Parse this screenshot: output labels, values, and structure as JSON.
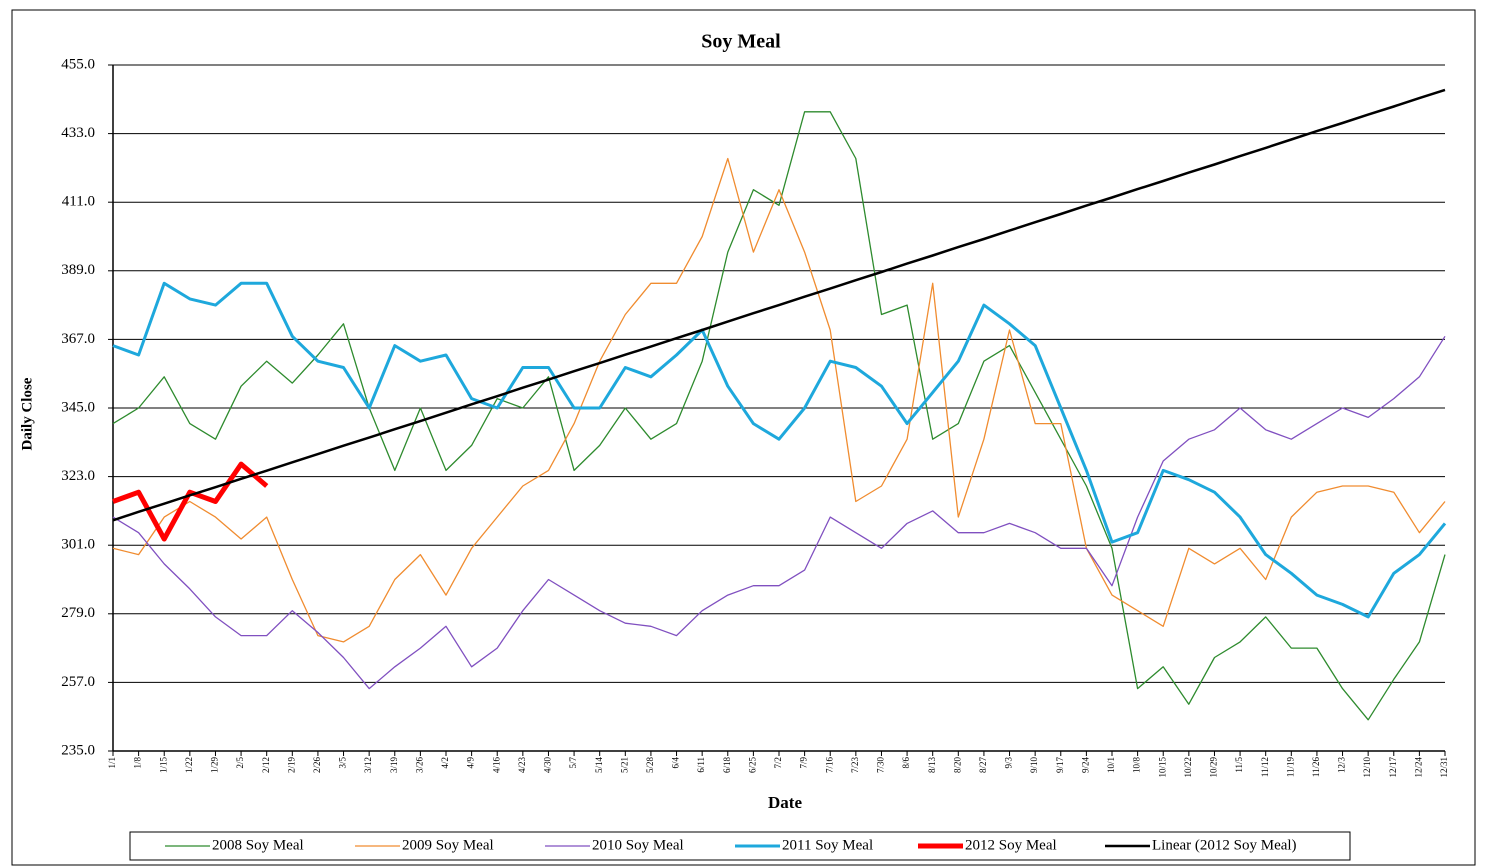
{
  "chart_data": {
    "type": "line",
    "title": "Soy Meal",
    "x_label": "Date",
    "y_label": "Daily Close",
    "categories": [
      "1/1",
      "1/8",
      "1/15",
      "1/22",
      "1/29",
      "2/5",
      "2/12",
      "2/19",
      "2/26",
      "3/5",
      "3/12",
      "3/19",
      "3/26",
      "4/2",
      "4/9",
      "4/16",
      "4/23",
      "4/30",
      "5/7",
      "5/14",
      "5/21",
      "5/28",
      "6/4",
      "6/11",
      "6/18",
      "6/25",
      "7/2",
      "7/9",
      "7/16",
      "7/23",
      "7/30",
      "8/6",
      "8/13",
      "8/20",
      "8/27",
      "9/3",
      "9/10",
      "9/17",
      "9/24",
      "10/1",
      "10/8",
      "10/15",
      "10/22",
      "10/29",
      "11/5",
      "11/12",
      "11/19",
      "11/26",
      "12/3",
      "12/10",
      "12/17",
      "12/24",
      "12/31"
    ],
    "ylim": [
      235,
      455
    ],
    "yticks": [
      {
        "value": 235,
        "label": "235.0"
      },
      {
        "value": 257,
        "label": "257.0"
      },
      {
        "value": 279,
        "label": "279.0"
      },
      {
        "value": 301,
        "label": "301.0"
      },
      {
        "value": 323,
        "label": "323.0"
      },
      {
        "value": 345,
        "label": "345.0"
      },
      {
        "value": 367,
        "label": "367.0"
      },
      {
        "value": 389,
        "label": "389.0"
      },
      {
        "value": 411,
        "label": "411.0"
      },
      {
        "value": 433,
        "label": "433.0"
      },
      {
        "value": 455,
        "label": "455.0"
      }
    ],
    "grid": true,
    "legend": "bottom",
    "series": [
      {
        "name": "2008 Soy Meal",
        "color": "#2e8b2e",
        "line_width": 1.3,
        "values": [
          340,
          345,
          355,
          340,
          335,
          352,
          360,
          353,
          362,
          372,
          345,
          325,
          345,
          325,
          333,
          348,
          345,
          355,
          325,
          333,
          345,
          335,
          340,
          360,
          395,
          415,
          410,
          440,
          440,
          425,
          375,
          378,
          335,
          340,
          360,
          365,
          350,
          335,
          320,
          300,
          255,
          262,
          250,
          265,
          270,
          278,
          268,
          268,
          255,
          245,
          258,
          270,
          298
        ]
      },
      {
        "name": "2009 Soy Meal",
        "color": "#f08c30",
        "line_width": 1.3,
        "values": [
          300,
          298,
          310,
          315,
          310,
          303,
          310,
          290,
          272,
          270,
          275,
          290,
          298,
          285,
          300,
          310,
          320,
          325,
          340,
          360,
          375,
          385,
          385,
          400,
          425,
          395,
          415,
          395,
          370,
          315,
          320,
          335,
          385,
          310,
          335,
          370,
          340,
          340,
          300,
          285,
          280,
          275,
          300,
          295,
          300,
          290,
          310,
          318,
          320,
          320,
          318,
          305,
          315
        ]
      },
      {
        "name": "2010 Soy Meal",
        "color": "#8050c0",
        "line_width": 1.3,
        "values": [
          310,
          305,
          295,
          287,
          278,
          272,
          272,
          280,
          273,
          265,
          255,
          262,
          268,
          275,
          262,
          268,
          280,
          290,
          285,
          280,
          276,
          275,
          272,
          280,
          285,
          288,
          288,
          293,
          310,
          305,
          300,
          308,
          312,
          305,
          305,
          308,
          305,
          300,
          300,
          288,
          310,
          328,
          335,
          338,
          345,
          338,
          335,
          340,
          345,
          342,
          348,
          355,
          368
        ]
      },
      {
        "name": "2011 Soy Meal",
        "color": "#1ea8dc",
        "line_width": 3,
        "values": [
          365,
          362,
          385,
          380,
          378,
          385,
          385,
          368,
          360,
          358,
          345,
          365,
          360,
          362,
          348,
          345,
          358,
          358,
          345,
          345,
          358,
          355,
          362,
          370,
          352,
          340,
          335,
          345,
          360,
          358,
          352,
          340,
          350,
          360,
          378,
          372,
          365,
          345,
          325,
          302,
          305,
          325,
          322,
          318,
          310,
          298,
          292,
          285,
          282,
          278,
          292,
          298,
          308
        ]
      },
      {
        "name": "2012 Soy Meal",
        "color": "#ff0000",
        "line_width": 5,
        "values": [
          315,
          318,
          303,
          318,
          315,
          327,
          320,
          null,
          null,
          null,
          null,
          null,
          null,
          null,
          null,
          null,
          null,
          null,
          null,
          null,
          null,
          null,
          null,
          null,
          null,
          null,
          null,
          null,
          null,
          null,
          null,
          null,
          null,
          null,
          null,
          null,
          null,
          null,
          null,
          null,
          null,
          null,
          null,
          null,
          null,
          null,
          null,
          null,
          null,
          null,
          null,
          null,
          null
        ]
      },
      {
        "name": "Linear (2012 Soy Meal)",
        "color": "#000000",
        "line_width": 2.5,
        "values": [
          309.0,
          311.7,
          314.3,
          317.0,
          319.6,
          322.3,
          324.9,
          327.6,
          330.2,
          332.9,
          335.5,
          338.2,
          340.8,
          343.5,
          346.2,
          348.8,
          351.5,
          354.1,
          356.8,
          359.4,
          362.1,
          364.7,
          367.4,
          370.0,
          372.7,
          375.4,
          378.0,
          380.7,
          383.3,
          386.0,
          388.6,
          391.3,
          393.9,
          396.6,
          399.2,
          401.9,
          404.6,
          407.2,
          409.9,
          412.5,
          415.2,
          417.8,
          420.5,
          423.1,
          425.8,
          428.4,
          431.1,
          433.8,
          436.4,
          439.1,
          441.7,
          444.4,
          447.0
        ]
      }
    ]
  }
}
